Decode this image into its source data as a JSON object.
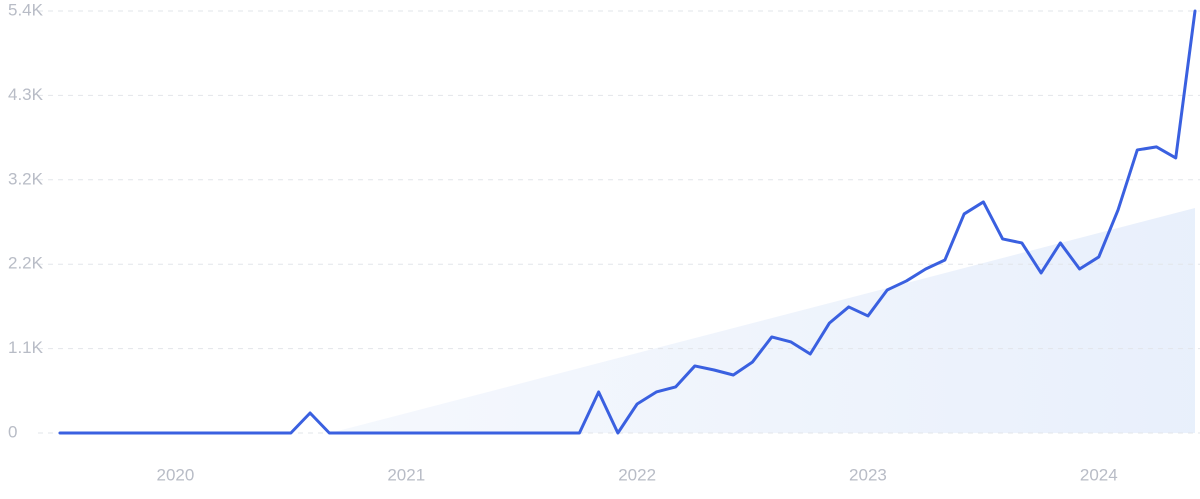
{
  "chart_data": {
    "type": "line",
    "categories": [
      null,
      null,
      null,
      null,
      null,
      null,
      "2020",
      null,
      null,
      null,
      null,
      null,
      null,
      null,
      null,
      null,
      null,
      null,
      "2021",
      null,
      null,
      null,
      null,
      null,
      null,
      null,
      null,
      null,
      null,
      null,
      "2022",
      null,
      null,
      null,
      null,
      null,
      null,
      null,
      null,
      null,
      null,
      null,
      "2023",
      null,
      null,
      null,
      null,
      null,
      null,
      null,
      null,
      null,
      null,
      null,
      "2024",
      null,
      null,
      null,
      null,
      null
    ],
    "series": [
      {
        "color": "#3a60e0",
        "values": [
          0,
          0,
          0,
          0,
          0,
          0,
          0,
          0,
          0,
          0,
          0,
          0,
          0,
          256,
          0,
          0,
          0,
          0,
          0,
          0,
          0,
          0,
          0,
          0,
          0,
          0,
          0,
          0,
          525,
          0,
          371,
          525,
          589,
          858,
          806,
          742,
          909,
          1229,
          1165,
          1011,
          1408,
          1613,
          1498,
          1830,
          1946,
          2099,
          2214,
          2803,
          2957,
          2483,
          2432,
          2048,
          2432,
          2099,
          2253,
          2854,
          3622,
          3661,
          3520,
          5400
        ]
      }
    ],
    "ylim": [
      0,
      5400
    ],
    "yticks": [
      0,
      {
        "value": 1080,
        "label": "1.1K"
      },
      {
        "value": 2160,
        "label": "2.2K"
      },
      {
        "value": 3240,
        "label": "3.2K"
      },
      {
        "value": 4320,
        "label": "4.3K"
      },
      {
        "value": 5400,
        "label": "5.4K"
      }
    ],
    "grid": true
  }
}
